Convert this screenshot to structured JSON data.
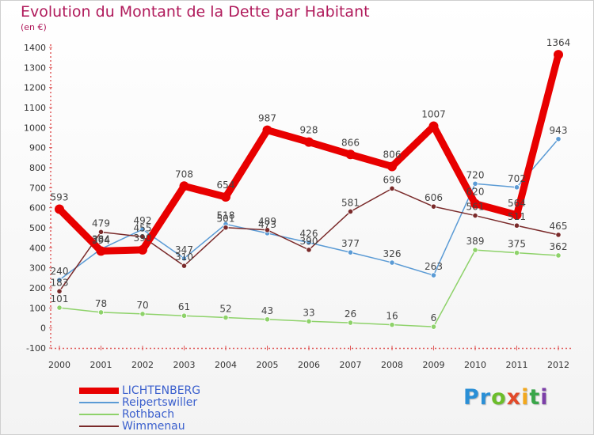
{
  "header": {
    "title": "Evolution du Montant de la Dette par Habitant",
    "subtitle": "(en €)"
  },
  "logo": {
    "text": "Proxiti",
    "colors": [
      "#2a8fd6",
      "#2a8fd6",
      "#6cbd2b",
      "#e24a2a",
      "#f2a81d",
      "#3aa64a",
      "#7c3fa8"
    ]
  },
  "chart_data": {
    "type": "line",
    "title": "Evolution du Montant de la Dette par Habitant",
    "subtitle": "(en €)",
    "x": [
      "2000",
      "2001",
      "2002",
      "2003",
      "2004",
      "2005",
      "2006",
      "2007",
      "2008",
      "2009",
      "2010",
      "2011",
      "2012"
    ],
    "ylim": [
      -100,
      1400
    ],
    "yticks": [
      -100,
      0,
      100,
      200,
      300,
      400,
      500,
      600,
      700,
      800,
      900,
      1000,
      1100,
      1200,
      1300,
      1400
    ],
    "grid": false,
    "legend": "bottom-left",
    "series": [
      {
        "name": "LICHTENBERG",
        "color": "#e80000",
        "values": [
          593,
          384,
          390,
          708,
          654,
          987,
          928,
          866,
          806,
          1007,
          620,
          564,
          1364
        ],
        "labels": [
          "593",
          "384",
          "390",
          "708",
          "654",
          "987",
          "928",
          "866",
          "806",
          "1007",
          "620",
          "564",
          "1364"
        ]
      },
      {
        "name": "Reipertswiller",
        "color": "#5b9bd5",
        "values": [
          240,
          394,
          492,
          347,
          518,
          473,
          426,
          377,
          326,
          263,
          720,
          702,
          943
        ],
        "labels": [
          "240",
          "394",
          "492",
          "347",
          "518",
          "473",
          "426",
          "377",
          "326",
          "263",
          "720",
          "702",
          "943"
        ]
      },
      {
        "name": "Rothbach",
        "color": "#8ed26a",
        "values": [
          101,
          78,
          70,
          61,
          52,
          43,
          33,
          26,
          16,
          6,
          389,
          375,
          362
        ],
        "labels": [
          "101",
          "78",
          "70",
          "61",
          "52",
          "43",
          "33",
          "26",
          "16",
          "6",
          "389",
          "375",
          "362"
        ]
      },
      {
        "name": "Wimmenau",
        "color": "#7a2a2a",
        "values": [
          183,
          479,
          455,
          310,
          501,
          489,
          390,
          581,
          696,
          606,
          561,
          511,
          465
        ],
        "labels": [
          "183",
          "479",
          "455",
          "310",
          "501",
          "489",
          "390",
          "581",
          "696",
          "606",
          "561",
          "511",
          "465"
        ]
      }
    ]
  }
}
